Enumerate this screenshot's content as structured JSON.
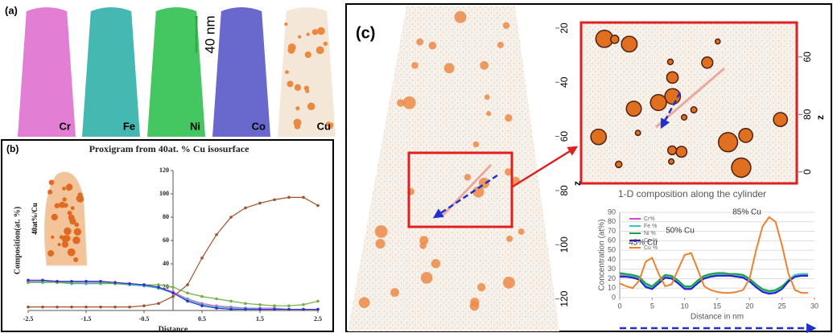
{
  "panel_a": {
    "label": "(a)",
    "scale_bar": "40 nm",
    "maps": [
      "Cr",
      "Fe",
      "Ni",
      "Co",
      "Cu"
    ]
  },
  "panel_b": {
    "label": "(b)",
    "inset_label": "40at%/Cu"
  },
  "panel_c": {
    "label": "(c)",
    "tomogram": {
      "axis_label": "z",
      "zlim": [
        12,
        132
      ],
      "zticks": [
        20,
        40,
        60,
        80,
        100,
        120
      ]
    },
    "zoom": {
      "axis_label": "z",
      "zlim": [
        48,
        104
      ],
      "zticks": [
        60,
        80,
        {
          "value": 100,
          "label": "0"
        }
      ]
    }
  },
  "chart_data": [
    {
      "type": "line",
      "title": "Proxigram from 40at. % Cu isosurface",
      "x_label": "Distance",
      "y_label": "Composition(at. %)",
      "x": [
        -2.5,
        -2.25,
        -2,
        -1.75,
        -1.5,
        -1.25,
        -1,
        -0.75,
        -0.5,
        -0.25,
        0,
        0.25,
        0.5,
        0.75,
        1,
        1.25,
        1.5,
        1.75,
        2,
        2.25,
        2.5
      ],
      "xlim": [
        -2.5,
        2.5
      ],
      "xticks": [
        -2.5,
        -1.5,
        -0.5,
        0.5,
        1.5,
        2.5
      ],
      "ylim": [
        0,
        120
      ],
      "yticks": [
        20,
        40,
        60,
        80,
        100,
        120
      ],
      "markers": true,
      "series": [
        {
          "name": "Cr",
          "color": "#c070c8",
          "values": [
            25,
            25,
            25,
            24,
            24,
            24,
            24,
            23,
            22,
            20,
            16,
            10,
            6,
            4,
            3,
            2,
            2,
            2,
            1,
            1,
            1
          ]
        },
        {
          "name": "Fe",
          "color": "#40b0b0",
          "values": [
            24,
            24,
            24,
            23,
            23,
            23,
            23,
            22,
            21,
            19,
            15,
            9,
            5,
            3,
            2,
            2,
            1,
            1,
            1,
            1,
            1
          ]
        },
        {
          "name": "Ni",
          "color": "#70b040",
          "values": [
            24,
            25,
            24,
            24,
            25,
            24,
            23,
            23,
            22,
            22,
            20,
            15,
            12,
            10,
            8,
            6,
            5,
            4,
            4,
            5,
            8
          ]
        },
        {
          "name": "Co",
          "color": "#3030d0",
          "values": [
            26,
            26,
            25,
            25,
            25,
            25,
            24,
            23,
            22,
            20,
            15,
            8,
            4,
            2,
            1,
            1,
            1,
            1,
            1,
            1,
            1
          ]
        },
        {
          "name": "Cu",
          "color": "#a0522d",
          "values": [
            3,
            3,
            3,
            3,
            3,
            3,
            3,
            3,
            4,
            6,
            12,
            22,
            45,
            65,
            80,
            88,
            92,
            95,
            97,
            97,
            90
          ]
        }
      ]
    },
    {
      "type": "line",
      "title": "1-D composition along the cylinder",
      "x_label": "Distance in nm",
      "y_label": "Concentration (at%)",
      "x": [
        0,
        1,
        2,
        3,
        4,
        5,
        6,
        7,
        8,
        9,
        10,
        11,
        12,
        13,
        14,
        15,
        16,
        17,
        18,
        19,
        20,
        21,
        22,
        23,
        24,
        25,
        26,
        27,
        28,
        29
      ],
      "xlim": [
        0,
        30
      ],
      "xticks": [
        0,
        5,
        10,
        15,
        20,
        25,
        30
      ],
      "ylim": [
        0,
        90
      ],
      "yticks": [
        0,
        10,
        20,
        30,
        40,
        50,
        60,
        70,
        80,
        90
      ],
      "grid": true,
      "legend": "upper left",
      "annotations": [
        "85% Cu",
        "50% Cu",
        "45% Cu"
      ],
      "series": [
        {
          "name": "Cr%",
          "color": "#e040e0",
          "values": [
            24,
            23,
            22,
            20,
            12,
            10,
            16,
            22,
            21,
            16,
            10,
            10,
            16,
            21,
            23,
            24,
            24,
            24,
            23,
            22,
            18,
            12,
            7,
            5,
            6,
            10,
            18,
            23,
            24,
            24
          ]
        },
        {
          "name": "Fe %",
          "color": "#40c0c0",
          "values": [
            25,
            24,
            23,
            21,
            13,
            11,
            17,
            23,
            22,
            17,
            11,
            11,
            17,
            22,
            24,
            25,
            25,
            25,
            24,
            23,
            19,
            13,
            8,
            6,
            7,
            11,
            19,
            24,
            25,
            25
          ]
        },
        {
          "name": "Ni %",
          "color": "#20a040",
          "values": [
            26,
            25,
            24,
            22,
            15,
            12,
            18,
            24,
            23,
            18,
            12,
            12,
            18,
            23,
            25,
            26,
            26,
            25,
            25,
            24,
            20,
            14,
            9,
            7,
            8,
            12,
            18,
            22,
            23,
            23
          ]
        },
        {
          "name": "Co %",
          "color": "#2020d0",
          "values": [
            22,
            22,
            21,
            19,
            11,
            9,
            15,
            21,
            20,
            15,
            9,
            9,
            15,
            20,
            22,
            23,
            23,
            23,
            22,
            21,
            17,
            11,
            6,
            4,
            5,
            9,
            17,
            22,
            23,
            23
          ]
        },
        {
          "name": "Cu %",
          "color": "#f08030",
          "values": [
            15,
            12,
            10,
            18,
            38,
            42,
            25,
            12,
            14,
            30,
            45,
            47,
            30,
            12,
            8,
            6,
            5,
            5,
            6,
            8,
            20,
            50,
            75,
            85,
            80,
            55,
            25,
            8,
            5,
            5
          ]
        }
      ]
    }
  ]
}
